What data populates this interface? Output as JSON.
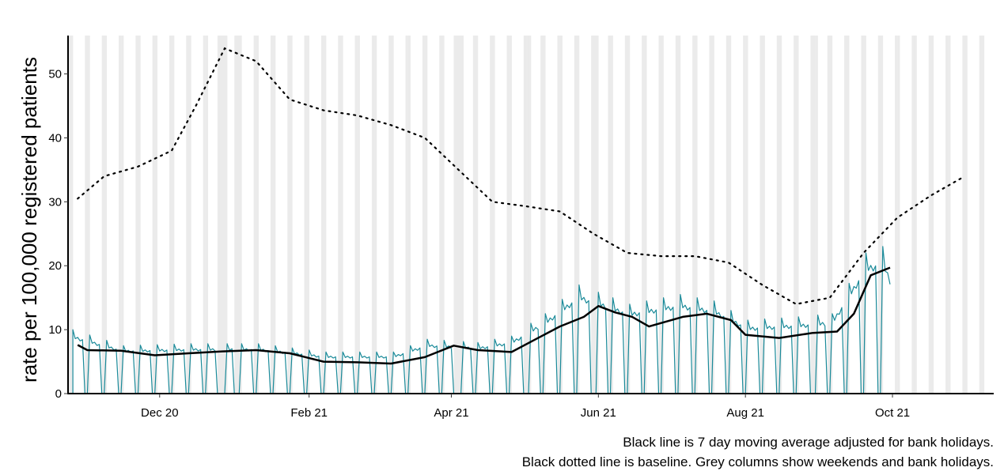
{
  "chart_data": {
    "type": "line",
    "ylabel": "rate per 100,000 registered patients",
    "xlabel": "",
    "ylim": [
      0,
      56
    ],
    "yticks": [
      0,
      10,
      20,
      30,
      40,
      50
    ],
    "xlim": [
      "2020-10-24",
      "2021-11-12"
    ],
    "xticks": [
      {
        "date": "2020-12-01",
        "label": "Dec 20"
      },
      {
        "date": "2021-02-01",
        "label": "Feb 21"
      },
      {
        "date": "2021-04-01",
        "label": "Apr 21"
      },
      {
        "date": "2021-06-01",
        "label": "Jun 21"
      },
      {
        "date": "2021-08-01",
        "label": "Aug 21"
      },
      {
        "date": "2021-10-01",
        "label": "Oct 21"
      }
    ],
    "grid": false,
    "background_columns": "weekends and bank holidays",
    "bank_holidays": [
      "2020-12-25",
      "2020-12-28",
      "2021-01-01",
      "2021-04-02",
      "2021-04-05",
      "2021-05-03",
      "2021-05-31",
      "2021-08-30"
    ],
    "daily_period": {
      "start": "2020-10-26",
      "end": "2021-09-30"
    },
    "series": [
      {
        "name": "",
        "style": "teal daily rate (drops to 0 on weekends and bank holidays)",
        "color": "#1a8a99",
        "weekday_peak_points": [
          {
            "x": "2020-10-26",
            "y": 10.0
          },
          {
            "x": "2020-11-16",
            "y": 7.5
          },
          {
            "x": "2020-12-14",
            "y": 7.8
          },
          {
            "x": "2021-01-11",
            "y": 7.8
          },
          {
            "x": "2021-02-08",
            "y": 6.5
          },
          {
            "x": "2021-03-08",
            "y": 6.5
          },
          {
            "x": "2021-03-22",
            "y": 8.5
          },
          {
            "x": "2021-04-12",
            "y": 8.0
          },
          {
            "x": "2021-04-26",
            "y": 9.0
          },
          {
            "x": "2021-05-10",
            "y": 12.5
          },
          {
            "x": "2021-05-24",
            "y": 17.0
          },
          {
            "x": "2021-06-14",
            "y": 14.0
          },
          {
            "x": "2021-07-05",
            "y": 15.5
          },
          {
            "x": "2021-07-19",
            "y": 14.5
          },
          {
            "x": "2021-08-02",
            "y": 11.5
          },
          {
            "x": "2021-08-23",
            "y": 12.0
          },
          {
            "x": "2021-09-06",
            "y": 12.5
          },
          {
            "x": "2021-09-20",
            "y": 22.0
          },
          {
            "x": "2021-09-27",
            "y": 23.0
          },
          {
            "x": "2021-09-30",
            "y": 20.0
          }
        ]
      },
      {
        "name": "",
        "style": "solid black 7 day moving average",
        "color": "#000000",
        "points": [
          {
            "x": "2020-10-28",
            "y": 7.6
          },
          {
            "x": "2020-11-01",
            "y": 6.8
          },
          {
            "x": "2020-11-15",
            "y": 6.7
          },
          {
            "x": "2020-11-29",
            "y": 6.0
          },
          {
            "x": "2020-12-13",
            "y": 6.3
          },
          {
            "x": "2020-12-27",
            "y": 6.6
          },
          {
            "x": "2021-01-10",
            "y": 6.8
          },
          {
            "x": "2021-01-24",
            "y": 6.3
          },
          {
            "x": "2021-02-07",
            "y": 5.0
          },
          {
            "x": "2021-02-21",
            "y": 4.9
          },
          {
            "x": "2021-03-07",
            "y": 4.7
          },
          {
            "x": "2021-03-21",
            "y": 5.7
          },
          {
            "x": "2021-04-02",
            "y": 7.5
          },
          {
            "x": "2021-04-12",
            "y": 6.8
          },
          {
            "x": "2021-04-26",
            "y": 6.5
          },
          {
            "x": "2021-05-06",
            "y": 8.5
          },
          {
            "x": "2021-05-16",
            "y": 10.5
          },
          {
            "x": "2021-05-26",
            "y": 12.0
          },
          {
            "x": "2021-06-01",
            "y": 13.7
          },
          {
            "x": "2021-06-08",
            "y": 12.7
          },
          {
            "x": "2021-06-15",
            "y": 12.0
          },
          {
            "x": "2021-06-22",
            "y": 10.5
          },
          {
            "x": "2021-07-06",
            "y": 12.0
          },
          {
            "x": "2021-07-16",
            "y": 12.5
          },
          {
            "x": "2021-07-26",
            "y": 11.5
          },
          {
            "x": "2021-08-01",
            "y": 9.2
          },
          {
            "x": "2021-08-15",
            "y": 8.7
          },
          {
            "x": "2021-08-29",
            "y": 9.5
          },
          {
            "x": "2021-09-08",
            "y": 9.7
          },
          {
            "x": "2021-09-15",
            "y": 12.5
          },
          {
            "x": "2021-09-22",
            "y": 18.5
          },
          {
            "x": "2021-09-30",
            "y": 19.7
          }
        ]
      },
      {
        "name": "",
        "style": "dotted black baseline",
        "color": "#000000",
        "points": [
          {
            "x": "2020-10-28",
            "y": 30.5
          },
          {
            "x": "2020-11-08",
            "y": 34.0
          },
          {
            "x": "2020-11-22",
            "y": 35.5
          },
          {
            "x": "2020-12-06",
            "y": 38.0
          },
          {
            "x": "2020-12-16",
            "y": 45.0
          },
          {
            "x": "2020-12-28",
            "y": 54.0
          },
          {
            "x": "2021-01-10",
            "y": 52.0
          },
          {
            "x": "2021-01-24",
            "y": 46.0
          },
          {
            "x": "2021-02-07",
            "y": 44.3
          },
          {
            "x": "2021-02-21",
            "y": 43.5
          },
          {
            "x": "2021-03-07",
            "y": 42.0
          },
          {
            "x": "2021-03-21",
            "y": 40.0
          },
          {
            "x": "2021-04-04",
            "y": 35.0
          },
          {
            "x": "2021-04-18",
            "y": 30.0
          },
          {
            "x": "2021-05-02",
            "y": 29.3
          },
          {
            "x": "2021-05-16",
            "y": 28.5
          },
          {
            "x": "2021-05-30",
            "y": 25.0
          },
          {
            "x": "2021-06-13",
            "y": 22.0
          },
          {
            "x": "2021-06-27",
            "y": 21.5
          },
          {
            "x": "2021-07-11",
            "y": 21.5
          },
          {
            "x": "2021-07-25",
            "y": 20.5
          },
          {
            "x": "2021-08-08",
            "y": 17.0
          },
          {
            "x": "2021-08-22",
            "y": 14.0
          },
          {
            "x": "2021-09-05",
            "y": 15.0
          },
          {
            "x": "2021-09-19",
            "y": 22.0
          },
          {
            "x": "2021-10-03",
            "y": 27.5
          },
          {
            "x": "2021-10-17",
            "y": 31.0
          },
          {
            "x": "2021-10-31",
            "y": 34.0
          }
        ]
      }
    ]
  },
  "captions": [
    "Black line is 7 day moving average adjusted for bank holidays.",
    "Black dotted line is baseline. Grey columns show weekends and bank holidays."
  ],
  "colors": {
    "teal": "#1a8a99",
    "weekend_column": "#ebebeb",
    "line": "#000000"
  }
}
